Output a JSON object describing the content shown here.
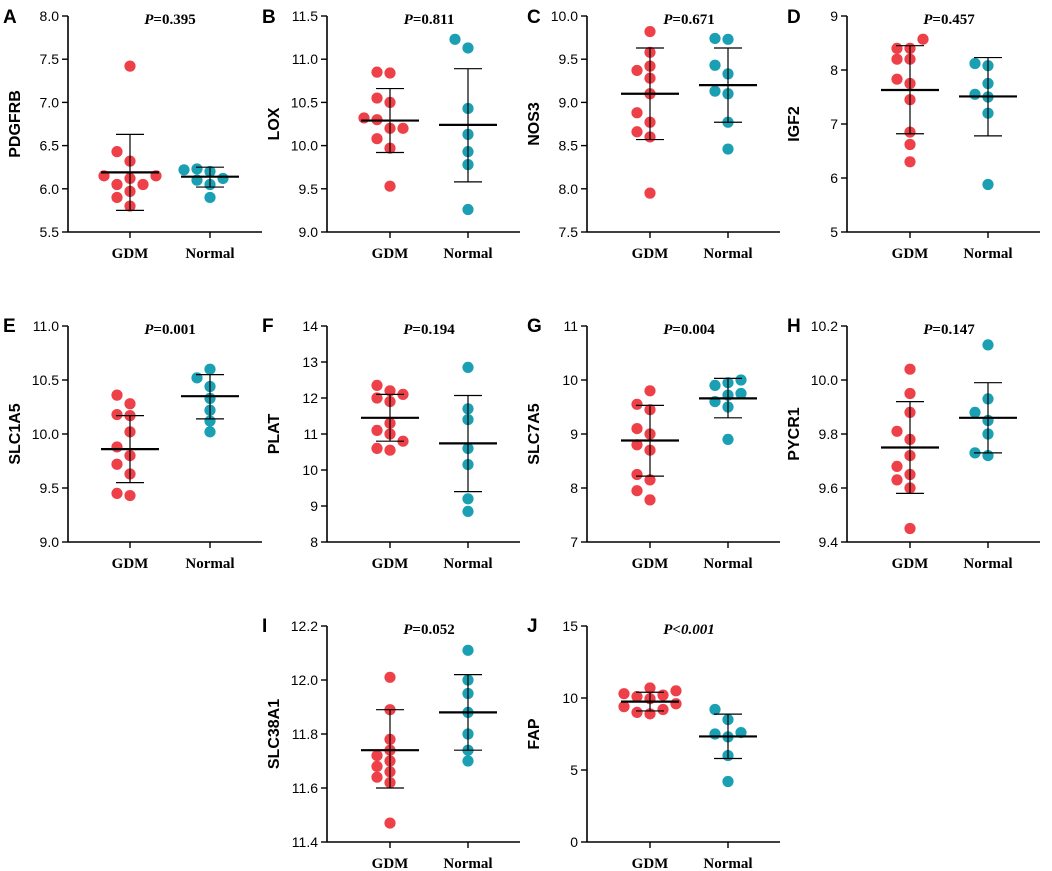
{
  "colors": {
    "GDM": "#ee4048",
    "Normal": "#1a9fb3",
    "axis": "#000000"
  },
  "chart_data": [
    {
      "panel": "A",
      "type": "scatter",
      "ylabel": "PDGFRB",
      "ylim": [
        5.5,
        8.0
      ],
      "yticks": [
        "5.5",
        "6.0",
        "6.5",
        "7.0",
        "7.5",
        "8.0"
      ],
      "p_text": "=0.395",
      "p_prefix": "P",
      "p_italic_all": false,
      "categories": [
        "GDM",
        "Normal"
      ],
      "series": [
        {
          "name": "GDM",
          "mean": 6.19,
          "sd_low": 5.75,
          "sd_high": 6.63,
          "values": [
            7.42,
            6.43,
            6.32,
            6.15,
            6.15,
            6.12,
            6.05,
            6.05,
            5.97,
            5.9,
            5.8
          ]
        },
        {
          "name": "Normal",
          "mean": 6.14,
          "sd_low": 6.02,
          "sd_high": 6.25,
          "values": [
            6.23,
            6.22,
            6.2,
            6.12,
            6.1,
            6.05,
            5.9
          ]
        }
      ]
    },
    {
      "panel": "B",
      "type": "scatter",
      "ylabel": "LOX",
      "ylim": [
        9.0,
        11.5
      ],
      "yticks": [
        "9.0",
        "9.5",
        "10.0",
        "10.5",
        "11.0",
        "11.5"
      ],
      "p_text": "=0.811",
      "p_prefix": "P",
      "p_italic_all": false,
      "categories": [
        "GDM",
        "Normal"
      ],
      "series": [
        {
          "name": "GDM",
          "mean": 10.29,
          "sd_low": 9.92,
          "sd_high": 10.66,
          "values": [
            10.85,
            10.84,
            10.55,
            10.5,
            10.32,
            10.3,
            10.2,
            10.2,
            10.08,
            9.97,
            9.53
          ]
        },
        {
          "name": "Normal",
          "mean": 10.24,
          "sd_low": 9.58,
          "sd_high": 10.89,
          "values": [
            11.23,
            11.13,
            10.43,
            10.13,
            9.93,
            9.78,
            9.26
          ]
        }
      ]
    },
    {
      "panel": "C",
      "type": "scatter",
      "ylabel": "NOS3",
      "ylim": [
        7.5,
        10.0
      ],
      "yticks": [
        "7.5",
        "8.0",
        "8.5",
        "9.0",
        "9.5",
        "10.0"
      ],
      "p_text": "=0.671",
      "p_prefix": "P",
      "p_italic_all": false,
      "categories": [
        "GDM",
        "Normal"
      ],
      "series": [
        {
          "name": "GDM",
          "mean": 9.1,
          "sd_low": 8.57,
          "sd_high": 9.63,
          "values": [
            9.82,
            9.58,
            9.42,
            9.37,
            9.28,
            9.1,
            8.88,
            8.77,
            8.66,
            8.6,
            7.95
          ]
        },
        {
          "name": "Normal",
          "mean": 9.2,
          "sd_low": 8.77,
          "sd_high": 9.63,
          "values": [
            9.74,
            9.73,
            9.43,
            9.33,
            9.13,
            9.1,
            8.77,
            8.46
          ]
        }
      ]
    },
    {
      "panel": "D",
      "type": "scatter",
      "ylabel": "IGF2",
      "ylim": [
        5,
        9
      ],
      "yticks": [
        "5",
        "6",
        "7",
        "8",
        "9"
      ],
      "p_text": "=0.457",
      "p_prefix": "P",
      "p_italic_all": false,
      "categories": [
        "GDM",
        "Normal"
      ],
      "series": [
        {
          "name": "GDM",
          "mean": 7.63,
          "sd_low": 6.82,
          "sd_high": 8.45,
          "values": [
            8.57,
            8.4,
            8.4,
            8.2,
            8.2,
            7.83,
            7.75,
            7.45,
            6.85,
            6.62,
            6.3
          ]
        },
        {
          "name": "Normal",
          "mean": 7.51,
          "sd_low": 6.78,
          "sd_high": 8.23,
          "values": [
            8.12,
            8.08,
            7.75,
            7.55,
            7.5,
            7.2,
            5.88
          ]
        }
      ]
    },
    {
      "panel": "E",
      "type": "scatter",
      "ylabel": "SLC1A5",
      "ylim": [
        9.0,
        11.0
      ],
      "yticks": [
        "9.0",
        "9.5",
        "10.0",
        "10.5",
        "11.0"
      ],
      "p_text": "=0.001",
      "p_prefix": "P",
      "p_italic_all": false,
      "categories": [
        "GDM",
        "Normal"
      ],
      "series": [
        {
          "name": "GDM",
          "mean": 9.86,
          "sd_low": 9.55,
          "sd_high": 10.17,
          "values": [
            10.36,
            10.28,
            10.18,
            10.17,
            10.02,
            9.88,
            9.8,
            9.72,
            9.63,
            9.45,
            9.43
          ]
        },
        {
          "name": "Normal",
          "mean": 10.35,
          "sd_low": 10.14,
          "sd_high": 10.55,
          "values": [
            10.6,
            10.52,
            10.44,
            10.33,
            10.22,
            10.12,
            10.02
          ]
        }
      ]
    },
    {
      "panel": "F",
      "type": "scatter",
      "ylabel": "PLAT",
      "ylim": [
        8,
        14
      ],
      "yticks": [
        "8",
        "9",
        "10",
        "11",
        "12",
        "13",
        "14"
      ],
      "p_text": "=0.194",
      "p_prefix": "P",
      "p_italic_all": false,
      "categories": [
        "GDM",
        "Normal"
      ],
      "series": [
        {
          "name": "GDM",
          "mean": 11.45,
          "sd_low": 10.8,
          "sd_high": 12.1,
          "values": [
            12.35,
            12.2,
            12.1,
            12.0,
            11.9,
            11.3,
            11.1,
            11.0,
            10.8,
            10.6,
            10.55
          ]
        },
        {
          "name": "Normal",
          "mean": 10.74,
          "sd_low": 9.4,
          "sd_high": 12.07,
          "values": [
            12.85,
            11.7,
            11.4,
            10.6,
            10.15,
            9.2,
            8.85
          ]
        }
      ]
    },
    {
      "panel": "G",
      "type": "scatter",
      "ylabel": "SLC7A5",
      "ylim": [
        7,
        11
      ],
      "yticks": [
        "7",
        "8",
        "9",
        "10",
        "11"
      ],
      "p_text": "=0.004",
      "p_prefix": "P",
      "p_italic_all": false,
      "categories": [
        "GDM",
        "Normal"
      ],
      "series": [
        {
          "name": "GDM",
          "mean": 8.88,
          "sd_low": 8.22,
          "sd_high": 9.53,
          "values": [
            9.8,
            9.55,
            9.45,
            9.1,
            9.0,
            8.8,
            8.7,
            8.25,
            8.15,
            7.95,
            7.78
          ]
        },
        {
          "name": "Normal",
          "mean": 9.66,
          "sd_low": 9.3,
          "sd_high": 10.03,
          "values": [
            10.0,
            9.95,
            9.9,
            9.75,
            9.72,
            9.6,
            9.5,
            8.9
          ]
        }
      ]
    },
    {
      "panel": "H",
      "type": "scatter",
      "ylabel": "PYCR1",
      "ylim": [
        9.4,
        10.2
      ],
      "yticks": [
        "9.4",
        "9.6",
        "9.8",
        "10.0",
        "10.2"
      ],
      "p_text": "=0.147",
      "p_prefix": "P",
      "p_italic_all": false,
      "categories": [
        "GDM",
        "Normal"
      ],
      "series": [
        {
          "name": "GDM",
          "mean": 9.75,
          "sd_low": 9.58,
          "sd_high": 9.92,
          "values": [
            10.04,
            9.95,
            9.88,
            9.81,
            9.78,
            9.72,
            9.68,
            9.65,
            9.63,
            9.6,
            9.45
          ]
        },
        {
          "name": "Normal",
          "mean": 9.86,
          "sd_low": 9.73,
          "sd_high": 9.99,
          "values": [
            10.13,
            9.93,
            9.88,
            9.85,
            9.8,
            9.73,
            9.72
          ]
        }
      ]
    },
    {
      "panel": "I",
      "type": "scatter",
      "ylabel": "SLC38A1",
      "ylim": [
        11.4,
        12.2
      ],
      "yticks": [
        "11.4",
        "11.6",
        "11.8",
        "12.0",
        "12.2"
      ],
      "p_text": "=0.052",
      "p_prefix": "P",
      "p_italic_all": false,
      "categories": [
        "GDM",
        "Normal"
      ],
      "series": [
        {
          "name": "GDM",
          "mean": 11.74,
          "sd_low": 11.6,
          "sd_high": 11.89,
          "values": [
            12.01,
            11.89,
            11.78,
            11.74,
            11.72,
            11.7,
            11.68,
            11.66,
            11.64,
            11.62,
            11.47
          ]
        },
        {
          "name": "Normal",
          "mean": 11.88,
          "sd_low": 11.74,
          "sd_high": 12.02,
          "values": [
            12.11,
            12.0,
            11.95,
            11.88,
            11.8,
            11.74,
            11.7
          ]
        }
      ]
    },
    {
      "panel": "J",
      "type": "scatter",
      "ylabel": "FAP",
      "ylim": [
        0,
        15
      ],
      "yticks": [
        "0",
        "5",
        "10",
        "15"
      ],
      "p_text": "<0.001",
      "p_prefix": "P",
      "p_italic_all": true,
      "categories": [
        "GDM",
        "Normal"
      ],
      "series": [
        {
          "name": "GDM",
          "mean": 9.75,
          "sd_low": 9.1,
          "sd_high": 10.4,
          "values": [
            10.7,
            10.5,
            10.3,
            10.2,
            10.1,
            9.95,
            9.6,
            9.4,
            9.2,
            9.0,
            8.9
          ]
        },
        {
          "name": "Normal",
          "mean": 7.33,
          "sd_low": 5.8,
          "sd_high": 8.88,
          "values": [
            9.2,
            8.5,
            7.6,
            7.5,
            7.3,
            6.0,
            4.2
          ]
        }
      ]
    }
  ]
}
